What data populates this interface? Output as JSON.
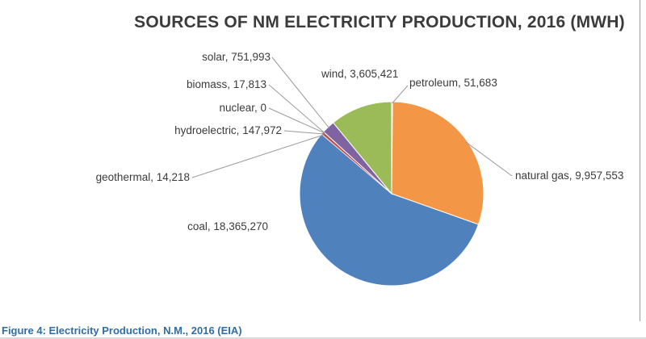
{
  "figure_caption": "Figure 4: Electricity Production, N.M., 2016 (EIA)",
  "chart_data": {
    "type": "pie",
    "title": "SOURCES OF NM ELECTRICITY PRODUCTION, 2016 (MWH)",
    "unit": "MWh",
    "start_category": "petroleum",
    "direction": "clockwise",
    "slices": [
      {
        "category": "petroleum",
        "value": 51683,
        "label": "petroleum, 51,683",
        "color": "#6f8fc7"
      },
      {
        "category": "natural gas",
        "value": 9957553,
        "label": "natural gas, 9,957,553",
        "color": "#f39646"
      },
      {
        "category": "coal",
        "value": 18365270,
        "label": "coal, 18,365,270",
        "color": "#4f81bd"
      },
      {
        "category": "geothermal",
        "value": 14218,
        "label": "geothermal, 14,218",
        "color": "#e36c3a"
      },
      {
        "category": "hydroelectric",
        "value": 147972,
        "label": "hydroelectric, 147,972",
        "color": "#c0504d"
      },
      {
        "category": "nuclear",
        "value": 0,
        "label": "nuclear, 0",
        "color": "#9bbb59"
      },
      {
        "category": "biomass",
        "value": 17813,
        "label": "biomass, 17,813",
        "color": "#4bacc6"
      },
      {
        "category": "solar",
        "value": 751993,
        "label": "solar, 751,993",
        "color": "#8064a2"
      },
      {
        "category": "wind",
        "value": 3605421,
        "label": "wind, 3,605,421",
        "color": "#9bbb59"
      }
    ],
    "legend": "none",
    "data_labels": "outside with leader lines"
  }
}
